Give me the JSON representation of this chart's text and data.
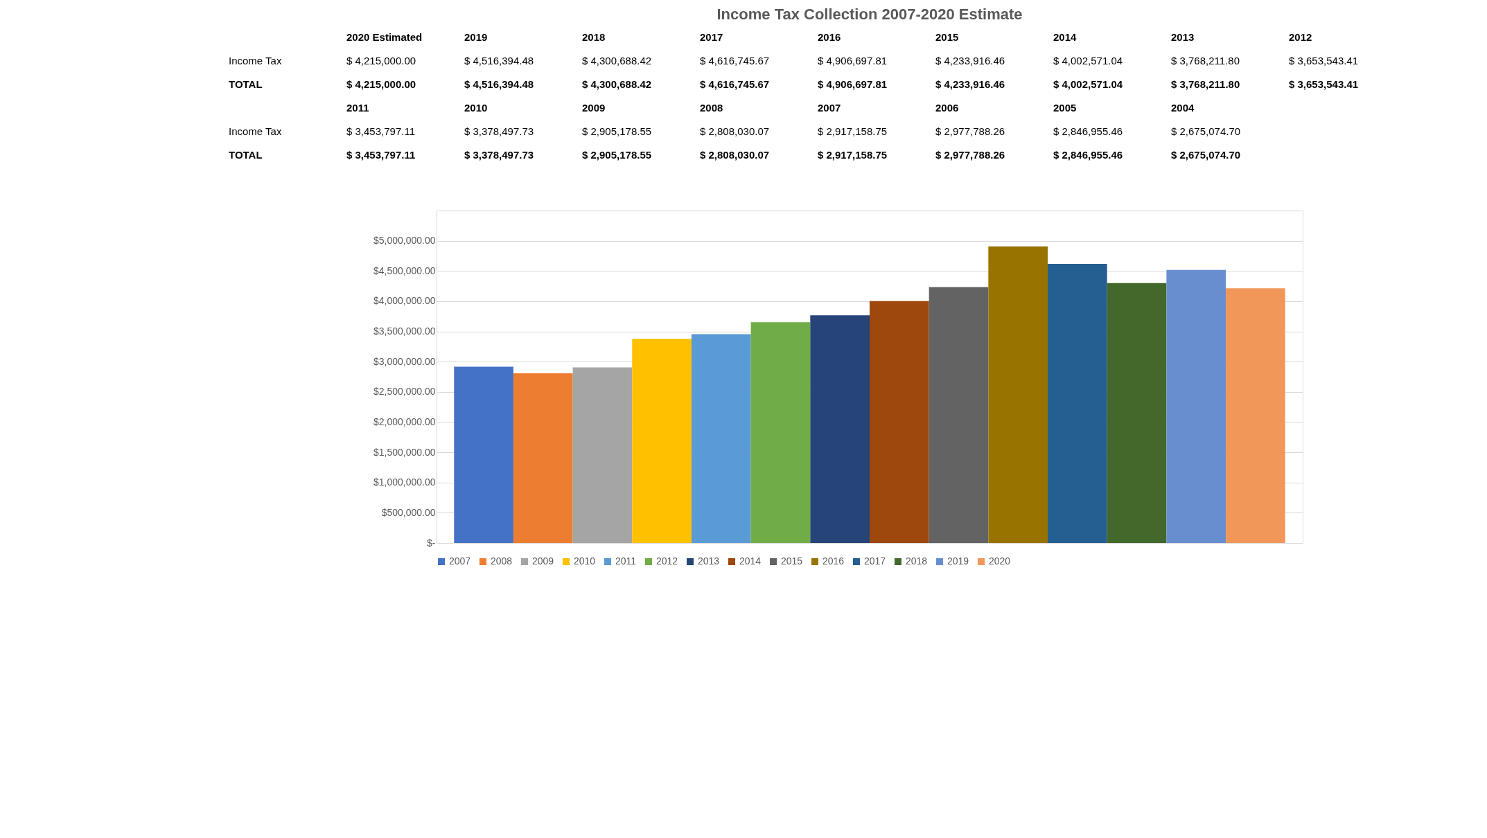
{
  "chart_data": {
    "type": "bar",
    "title": "Income Tax Collection 2007-2020 Estimate",
    "categories": [
      null
    ],
    "series": [
      {
        "name": "2007",
        "color": "#4472c4",
        "values": [
          2917158.75
        ]
      },
      {
        "name": "2008",
        "color": "#ed7d31",
        "values": [
          2808030.07
        ]
      },
      {
        "name": "2009",
        "color": "#a5a5a5",
        "values": [
          2905178.55
        ]
      },
      {
        "name": "2010",
        "color": "#ffc000",
        "values": [
          3378497.73
        ]
      },
      {
        "name": "2011",
        "color": "#5b9bd5",
        "values": [
          3453797.11
        ]
      },
      {
        "name": "2012",
        "color": "#70ad47",
        "values": [
          3653543.41
        ]
      },
      {
        "name": "2013",
        "color": "#264478",
        "values": [
          3768211.8
        ]
      },
      {
        "name": "2014",
        "color": "#9e480e",
        "values": [
          4002571.04
        ]
      },
      {
        "name": "2015",
        "color": "#636363",
        "values": [
          4233916.46
        ]
      },
      {
        "name": "2016",
        "color": "#997300",
        "values": [
          4906697.81
        ]
      },
      {
        "name": "2017",
        "color": "#255e91",
        "values": [
          4616745.67
        ]
      },
      {
        "name": "2018",
        "color": "#43682b",
        "values": [
          4300688.42
        ]
      },
      {
        "name": "2019",
        "color": "#698ed0",
        "values": [
          4516394.48
        ]
      },
      {
        "name": "2020",
        "color": "#f1975a",
        "values": [
          4215000.0
        ]
      }
    ],
    "ylim": [
      0,
      5500000
    ],
    "yticks": [
      {
        "value": 0,
        "label": "$-"
      },
      {
        "value": 500000,
        "label": "$500,000.00"
      },
      {
        "value": 1000000,
        "label": "$1,000,000.00"
      },
      {
        "value": 1500000,
        "label": "$1,500,000.00"
      },
      {
        "value": 2000000,
        "label": "$2,000,000.00"
      },
      {
        "value": 2500000,
        "label": "$2,500,000.00"
      },
      {
        "value": 3000000,
        "label": "$3,000,000.00"
      },
      {
        "value": 3500000,
        "label": "$3,500,000.00"
      },
      {
        "value": 4000000,
        "label": "$4,000,000.00"
      },
      {
        "value": 4500000,
        "label": "$4,500,000.00"
      },
      {
        "value": 5000000,
        "label": "$5,000,000.00"
      },
      {
        "value": 5500000,
        "label": null
      }
    ],
    "grid": "y",
    "legend": "bottom",
    "tick_labels": "y",
    "annotations": [
      "2020 Estimated",
      "2019",
      "2018",
      "2017",
      "2016",
      "2015",
      "2014",
      "2013",
      "2012",
      "Income Tax",
      "$ 4,215,000.00",
      "$ 4,516,394.48",
      "$ 4,300,688.42",
      "$ 4,616,745.67",
      "$ 4,906,697.81",
      "$ 4,233,916.46",
      "$ 4,002,571.04",
      "$ 3,768,211.80",
      "$ 3,653,543.41",
      "TOTAL",
      "$ 4,215,000.00",
      "$ 4,516,394.48",
      "$ 4,300,688.42",
      "$ 4,616,745.67",
      "$ 4,906,697.81",
      "$ 4,233,916.46",
      "$ 4,002,571.04",
      "$ 3,768,211.80",
      "$ 3,653,543.41",
      "2011",
      "2010",
      "2009",
      "2008",
      "2007",
      "2006",
      "2005",
      "2004",
      "Income Tax",
      "$ 3,453,797.11",
      "$ 3,378,497.73",
      "$ 2,905,178.55",
      "$ 2,808,030.07",
      "$ 2,917,158.75",
      "$ 2,977,788.26",
      "$ 2,846,955.46",
      "$ 2,675,074.70",
      "TOTAL",
      "$ 3,453,797.11",
      "$ 3,378,497.73",
      "$ 2,905,178.55",
      "$ 2,808,030.07",
      "$ 2,917,158.75",
      "$ 2,977,788.26",
      "$ 2,846,955.46",
      "$ 2,675,074.70"
    ]
  }
}
